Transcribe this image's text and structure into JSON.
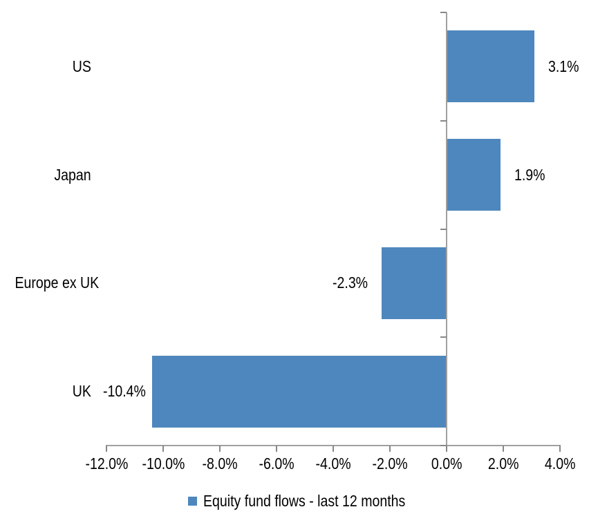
{
  "chart_data": {
    "type": "bar",
    "orientation": "horizontal",
    "title": "",
    "xlabel": "",
    "ylabel": "",
    "categories": [
      "US",
      "Japan",
      "Europe ex UK",
      "UK"
    ],
    "series": [
      {
        "name": "Equity fund flows - last 12 months",
        "values": [
          3.1,
          1.9,
          -2.3,
          -10.4
        ],
        "labels": [
          "3.1%",
          "1.9%",
          "-2.3%",
          "-10.4%"
        ],
        "color": "#4E87BD"
      }
    ],
    "xlim": [
      -12,
      4
    ],
    "x_tick_step": 2,
    "x_tick_labels": [
      "-12.0%",
      "-10.0%",
      "-8.0%",
      "-6.0%",
      "-4.0%",
      "-2.0%",
      "0.0%",
      "2.0%",
      "4.0%"
    ],
    "grid": false,
    "legend_position": "bottom",
    "axis_color": "#A0A0A0",
    "tick_color": "#878787",
    "text_color": "#000000",
    "background": "#FFFFFF"
  },
  "legend": {
    "label": "Equity fund flows - last 12 months",
    "swatch_color": "#4E87BD"
  }
}
